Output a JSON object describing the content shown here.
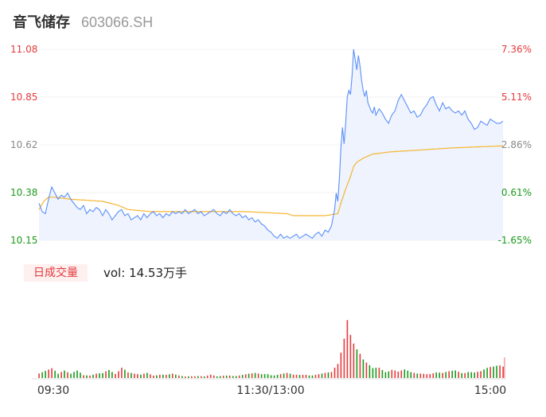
{
  "header": {
    "name": "音飞储存",
    "code": "603066.SH"
  },
  "volume_panel": {
    "tab_label": "日成交量",
    "vol_text": "vol: 14.53万手"
  },
  "colors": {
    "price_line": "#5b8ff9",
    "avg_line": "#f6b52f",
    "up": "#e4393c",
    "down": "#1a9a1a",
    "area": "#eef3fd"
  },
  "chart_data": {
    "type": "line",
    "title": "",
    "xlabel": "",
    "ylabel": "",
    "ylim": [
      10.15,
      11.08
    ],
    "pct_ylim": [
      -1.65,
      7.36
    ],
    "y_ticks_left": [
      "11.08",
      "10.85",
      "10.62",
      "10.38",
      "10.15"
    ],
    "y_ticks_right": [
      "7.36%",
      "5.11%",
      "2.86%",
      "0.61%",
      "-1.65%"
    ],
    "x_ticks": [
      "09:30",
      "11:30/13:00",
      "15:00"
    ],
    "price_anchors": [
      [
        0,
        10.33
      ],
      [
        2,
        10.29
      ],
      [
        4,
        10.28
      ],
      [
        6,
        10.35
      ],
      [
        8,
        10.41
      ],
      [
        10,
        10.38
      ],
      [
        12,
        10.35
      ],
      [
        14,
        10.37
      ],
      [
        16,
        10.36
      ],
      [
        18,
        10.38
      ],
      [
        20,
        10.35
      ],
      [
        22,
        10.33
      ],
      [
        24,
        10.31
      ],
      [
        26,
        10.3
      ],
      [
        28,
        10.32
      ],
      [
        30,
        10.28
      ],
      [
        32,
        10.3
      ],
      [
        34,
        10.29
      ],
      [
        36,
        10.31
      ],
      [
        38,
        10.3
      ],
      [
        40,
        10.27
      ],
      [
        42,
        10.3
      ],
      [
        44,
        10.28
      ],
      [
        46,
        10.25
      ],
      [
        48,
        10.27
      ],
      [
        50,
        10.29
      ],
      [
        52,
        10.3
      ],
      [
        54,
        10.27
      ],
      [
        56,
        10.28
      ],
      [
        58,
        10.25
      ],
      [
        60,
        10.26
      ],
      [
        62,
        10.27
      ],
      [
        64,
        10.25
      ],
      [
        66,
        10.28
      ],
      [
        68,
        10.26
      ],
      [
        70,
        10.28
      ],
      [
        72,
        10.29
      ],
      [
        74,
        10.27
      ],
      [
        76,
        10.28
      ],
      [
        78,
        10.26
      ],
      [
        80,
        10.28
      ],
      [
        82,
        10.27
      ],
      [
        84,
        10.29
      ],
      [
        86,
        10.28
      ],
      [
        88,
        10.29
      ],
      [
        90,
        10.28
      ],
      [
        92,
        10.3
      ],
      [
        94,
        10.28
      ],
      [
        96,
        10.29
      ],
      [
        98,
        10.3
      ],
      [
        100,
        10.28
      ],
      [
        102,
        10.29
      ],
      [
        104,
        10.27
      ],
      [
        106,
        10.28
      ],
      [
        108,
        10.29
      ],
      [
        110,
        10.3
      ],
      [
        112,
        10.28
      ],
      [
        114,
        10.27
      ],
      [
        116,
        10.29
      ],
      [
        118,
        10.28
      ],
      [
        120,
        10.3
      ],
      [
        122,
        10.28
      ],
      [
        124,
        10.27
      ],
      [
        126,
        10.28
      ],
      [
        128,
        10.26
      ],
      [
        130,
        10.27
      ],
      [
        132,
        10.25
      ],
      [
        134,
        10.26
      ],
      [
        136,
        10.24
      ],
      [
        138,
        10.25
      ],
      [
        140,
        10.23
      ],
      [
        142,
        10.22
      ],
      [
        144,
        10.2
      ],
      [
        146,
        10.19
      ],
      [
        148,
        10.17
      ],
      [
        150,
        10.16
      ],
      [
        152,
        10.18
      ],
      [
        154,
        10.16
      ],
      [
        156,
        10.17
      ],
      [
        158,
        10.16
      ],
      [
        160,
        10.17
      ],
      [
        162,
        10.18
      ],
      [
        164,
        10.16
      ],
      [
        166,
        10.17
      ],
      [
        168,
        10.18
      ],
      [
        170,
        10.17
      ],
      [
        172,
        10.16
      ],
      [
        174,
        10.18
      ],
      [
        176,
        10.19
      ],
      [
        178,
        10.17
      ],
      [
        180,
        10.2
      ],
      [
        182,
        10.19
      ],
      [
        184,
        10.22
      ],
      [
        186,
        10.3
      ],
      [
        187,
        10.38
      ],
      [
        188,
        10.34
      ],
      [
        189,
        10.45
      ],
      [
        190,
        10.6
      ],
      [
        191,
        10.7
      ],
      [
        192,
        10.62
      ],
      [
        193,
        10.72
      ],
      [
        194,
        10.85
      ],
      [
        195,
        10.88
      ],
      [
        196,
        10.86
      ],
      [
        197,
        10.95
      ],
      [
        198,
        11.08
      ],
      [
        199,
        11.03
      ],
      [
        200,
        10.98
      ],
      [
        201,
        11.05
      ],
      [
        202,
        11.0
      ],
      [
        203,
        10.93
      ],
      [
        204,
        10.88
      ],
      [
        205,
        10.85
      ],
      [
        206,
        10.88
      ],
      [
        207,
        10.82
      ],
      [
        208,
        10.8
      ],
      [
        209,
        10.78
      ],
      [
        210,
        10.77
      ],
      [
        211,
        10.8
      ],
      [
        212,
        10.76
      ],
      [
        214,
        10.79
      ],
      [
        216,
        10.77
      ],
      [
        218,
        10.74
      ],
      [
        220,
        10.72
      ],
      [
        222,
        10.76
      ],
      [
        224,
        10.78
      ],
      [
        226,
        10.83
      ],
      [
        228,
        10.86
      ],
      [
        230,
        10.83
      ],
      [
        232,
        10.8
      ],
      [
        234,
        10.77
      ],
      [
        236,
        10.78
      ],
      [
        238,
        10.75
      ],
      [
        240,
        10.76
      ],
      [
        242,
        10.79
      ],
      [
        244,
        10.81
      ],
      [
        246,
        10.84
      ],
      [
        248,
        10.85
      ],
      [
        250,
        10.81
      ],
      [
        252,
        10.78
      ],
      [
        254,
        10.82
      ],
      [
        256,
        10.79
      ],
      [
        258,
        10.8
      ],
      [
        260,
        10.78
      ],
      [
        262,
        10.77
      ],
      [
        264,
        10.78
      ],
      [
        266,
        10.76
      ],
      [
        268,
        10.78
      ],
      [
        270,
        10.74
      ],
      [
        272,
        10.72
      ],
      [
        274,
        10.69
      ],
      [
        276,
        10.7
      ],
      [
        278,
        10.73
      ],
      [
        280,
        10.72
      ],
      [
        282,
        10.71
      ],
      [
        284,
        10.74
      ],
      [
        286,
        10.73
      ],
      [
        288,
        10.72
      ],
      [
        290,
        10.72
      ],
      [
        292,
        10.73
      ]
    ],
    "avg_anchors": [
      [
        0,
        10.3
      ],
      [
        3,
        10.34
      ],
      [
        6,
        10.36
      ],
      [
        10,
        10.36
      ],
      [
        20,
        10.35
      ],
      [
        40,
        10.34
      ],
      [
        50,
        10.32
      ],
      [
        56,
        10.3
      ],
      [
        70,
        10.29
      ],
      [
        100,
        10.29
      ],
      [
        130,
        10.29
      ],
      [
        156,
        10.28
      ],
      [
        160,
        10.27
      ],
      [
        180,
        10.27
      ],
      [
        188,
        10.28
      ],
      [
        190,
        10.33
      ],
      [
        193,
        10.4
      ],
      [
        196,
        10.46
      ],
      [
        198,
        10.51
      ],
      [
        200,
        10.53
      ],
      [
        204,
        10.55
      ],
      [
        210,
        10.57
      ],
      [
        220,
        10.58
      ],
      [
        240,
        10.59
      ],
      [
        260,
        10.6
      ],
      [
        292,
        10.61
      ]
    ],
    "volume_anchors": [
      [
        0,
        0.08
      ],
      [
        4,
        0.1
      ],
      [
        8,
        0.12
      ],
      [
        12,
        0.05
      ],
      [
        16,
        0.09
      ],
      [
        20,
        0.06
      ],
      [
        24,
        0.13
      ],
      [
        28,
        0.04
      ],
      [
        32,
        0.03
      ],
      [
        36,
        0.05
      ],
      [
        40,
        0.06
      ],
      [
        44,
        0.11
      ],
      [
        48,
        0.07
      ],
      [
        52,
        0.15
      ],
      [
        56,
        0.07
      ],
      [
        60,
        0.05
      ],
      [
        64,
        0.04
      ],
      [
        68,
        0.07
      ],
      [
        72,
        0.04
      ],
      [
        76,
        0.05
      ],
      [
        80,
        0.04
      ],
      [
        84,
        0.05
      ],
      [
        88,
        0.03
      ],
      [
        92,
        0.02
      ],
      [
        96,
        0.03
      ],
      [
        100,
        0.03
      ],
      [
        104,
        0.02
      ],
      [
        108,
        0.04
      ],
      [
        112,
        0.02
      ],
      [
        116,
        0.03
      ],
      [
        120,
        0.04
      ],
      [
        124,
        0.03
      ],
      [
        128,
        0.04
      ],
      [
        132,
        0.05
      ],
      [
        136,
        0.06
      ],
      [
        140,
        0.05
      ],
      [
        144,
        0.06
      ],
      [
        148,
        0.04
      ],
      [
        152,
        0.05
      ],
      [
        156,
        0.06
      ],
      [
        160,
        0.04
      ],
      [
        164,
        0.04
      ],
      [
        168,
        0.05
      ],
      [
        172,
        0.04
      ],
      [
        176,
        0.05
      ],
      [
        180,
        0.06
      ],
      [
        184,
        0.07
      ],
      [
        188,
        0.18
      ],
      [
        190,
        0.35
      ],
      [
        192,
        0.6
      ],
      [
        194,
        1.0
      ],
      [
        196,
        0.7
      ],
      [
        198,
        0.5
      ],
      [
        200,
        0.38
      ],
      [
        202,
        0.3
      ],
      [
        204,
        0.22
      ],
      [
        206,
        0.18
      ],
      [
        208,
        0.15
      ],
      [
        210,
        0.12
      ],
      [
        214,
        0.14
      ],
      [
        218,
        0.1
      ],
      [
        222,
        0.12
      ],
      [
        226,
        0.08
      ],
      [
        230,
        0.1
      ],
      [
        234,
        0.07
      ],
      [
        238,
        0.06
      ],
      [
        242,
        0.07
      ],
      [
        246,
        0.06
      ],
      [
        250,
        0.07
      ],
      [
        254,
        0.06
      ],
      [
        258,
        0.08
      ],
      [
        262,
        0.1
      ],
      [
        266,
        0.08
      ],
      [
        270,
        0.09
      ],
      [
        274,
        0.07
      ],
      [
        278,
        0.08
      ],
      [
        282,
        0.12
      ],
      [
        286,
        0.15
      ],
      [
        290,
        0.2
      ]
    ]
  }
}
